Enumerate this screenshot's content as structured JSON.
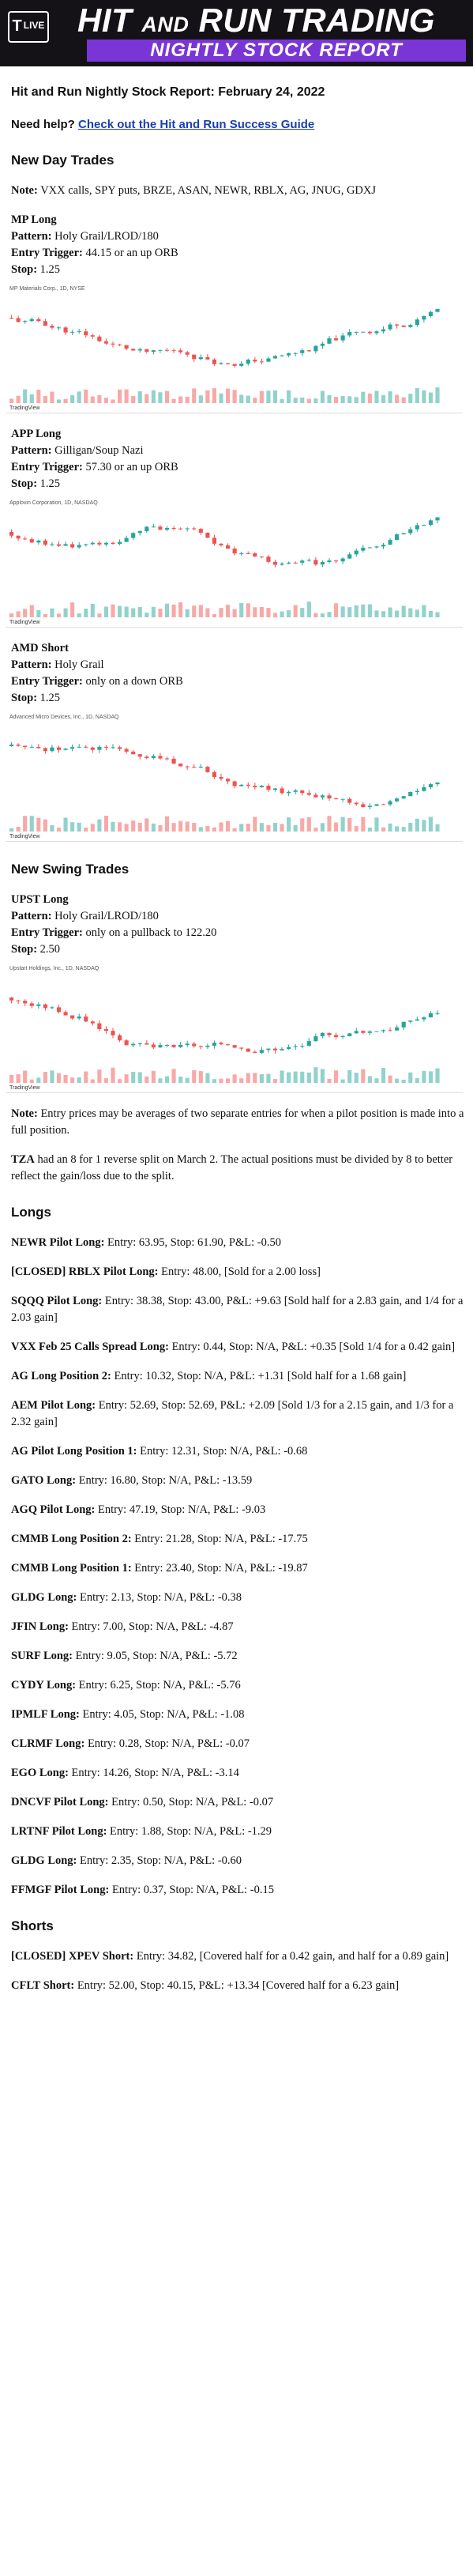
{
  "banner": {
    "logo_text": "LIVE",
    "title_part1": "HIT",
    "title_part2": "AND",
    "title_part3": "RUN TRADING",
    "subtitle": "NIGHTLY STOCK REPORT"
  },
  "report_title": "Hit and Run Nightly Stock Report: February 24, 2022",
  "help": {
    "label": "Need help?",
    "link": "Check out the Hit and Run Success Guide"
  },
  "new_day_trades": {
    "heading": "New Day Trades",
    "note_label": "Note:",
    "note_text": "VXX calls, SPY puts, BRZE, ASAN, NEWR, RBLX, AG, JNUG, GDXJ",
    "trades": [
      {
        "name": "MP Long",
        "pattern": "Holy Grail/LROD/180",
        "trigger": "44.15 or an up ORB",
        "stop": "1.25",
        "chart_caption": "MP Materials Corp., 1D, NYSE"
      },
      {
        "name": "APP Long",
        "pattern": "Gilligan/Soup Nazi",
        "trigger": "57.30 or an up ORB",
        "stop": "1.25",
        "chart_caption": "Applovin Corporation, 1D, NASDAQ"
      },
      {
        "name": "AMD Short",
        "pattern": "Holy Grail",
        "trigger": "only on a down ORB",
        "stop": "1.25",
        "chart_caption": "Advanced Micro Devices, Inc., 1D, NASDAQ"
      }
    ]
  },
  "new_swing_trades": {
    "heading": "New Swing Trades",
    "trades": [
      {
        "name": "UPST Long",
        "pattern": "Holy Grail/LROD/180",
        "trigger": "only on a pullback to 122.20",
        "stop": "2.50",
        "chart_caption": "Upstart Holdings, Inc., 1D, NASDAQ"
      }
    ]
  },
  "labels": {
    "pattern": "Pattern:",
    "trigger": "Entry Trigger:",
    "stop": "Stop:"
  },
  "notes": {
    "entry_label": "Note:",
    "entry_text": "Entry prices may be averages of two separate entries for when a pilot position is made into a full position.",
    "tza_label": "TZA",
    "tza_text": "had an 8 for 1 reverse split on March 2. The actual positions must be divided by 8 to better reflect the gain/loss due to the split."
  },
  "longs": {
    "heading": "Longs",
    "items": [
      {
        "name": "NEWR Pilot Long:",
        "detail": "Entry: 63.95, Stop: 61.90, P&L: -0.50"
      },
      {
        "name": "[CLOSED] RBLX Pilot Long:",
        "detail": "Entry: 48.00, [Sold for a 2.00 loss]"
      },
      {
        "name": "SQQQ Pilot Long:",
        "detail": "Entry: 38.38, Stop: 43.00, P&L: +9.63 [Sold half for a 2.83 gain, and 1/4 for a 2.03 gain]"
      },
      {
        "name": "VXX Feb 25 Calls Spread Long:",
        "detail": "Entry: 0.44, Stop: N/A, P&L: +0.35 [Sold 1/4 for a 0.42 gain]"
      },
      {
        "name": "AG Long Position 2:",
        "detail": "Entry: 10.32, Stop: N/A, P&L: +1.31 [Sold half for a 1.68 gain]"
      },
      {
        "name": "AEM Pilot Long:",
        "detail": "Entry: 52.69, Stop: 52.69, P&L: +2.09 [Sold 1/3 for a 2.15 gain, and 1/3 for a 2.32 gain]"
      },
      {
        "name": "AG Pilot Long Position 1:",
        "detail": "Entry: 12.31, Stop: N/A, P&L: -0.68"
      },
      {
        "name": "GATO Long:",
        "detail": "Entry: 16.80, Stop: N/A, P&L: -13.59"
      },
      {
        "name": "AGQ Pilot Long:",
        "detail": "Entry: 47.19, Stop: N/A, P&L: -9.03"
      },
      {
        "name": "CMMB Long Position 2:",
        "detail": "Entry: 21.28, Stop: N/A, P&L: -17.75"
      },
      {
        "name": "CMMB Long Position 1:",
        "detail": "Entry: 23.40, Stop: N/A, P&L: -19.87"
      },
      {
        "name": "GLDG Long:",
        "detail": "Entry: 2.13, Stop: N/A, P&L: -0.38"
      },
      {
        "name": "JFIN Long:",
        "detail": "Entry: 7.00, Stop: N/A, P&L: -4.87"
      },
      {
        "name": "SURF Long:",
        "detail": "Entry: 9.05, Stop: N/A, P&L: -5.72"
      },
      {
        "name": "CYDY Long:",
        "detail": "Entry: 6.25, Stop: N/A, P&L: -5.76"
      },
      {
        "name": "IPMLF Long:",
        "detail": "Entry: 4.05, Stop: N/A, P&L: -1.08"
      },
      {
        "name": "CLRMF Long:",
        "detail": "Entry: 0.28, Stop: N/A, P&L: -0.07"
      },
      {
        "name": "EGO Long:",
        "detail": "Entry: 14.26, Stop: N/A, P&L: -3.14"
      },
      {
        "name": "DNCVF Pilot Long:",
        "detail": "Entry: 0.50, Stop: N/A, P&L: -0.07"
      },
      {
        "name": "LRTNF Pilot Long:",
        "detail": "Entry: 1.88, Stop: N/A, P&L: -1.29"
      },
      {
        "name": "GLDG Long:",
        "detail": "Entry: 2.35, Stop: N/A, P&L: -0.60"
      },
      {
        "name": "FFMGF Pilot Long:",
        "detail": "Entry: 0.37, Stop: N/A, P&L: -0.15"
      }
    ]
  },
  "shorts": {
    "heading": "Shorts",
    "items": [
      {
        "name": "[CLOSED] XPEV Short:",
        "detail": "Entry: 34.82, [Covered half for a 0.42 gain, and half for a 0.89 gain]"
      },
      {
        "name": "CFLT Short:",
        "detail": "Entry: 52.00, Stop: 40.15, P&L: +13.34 [Covered half for a 6.23 gain]"
      }
    ]
  },
  "chart_footer": "TradingView"
}
